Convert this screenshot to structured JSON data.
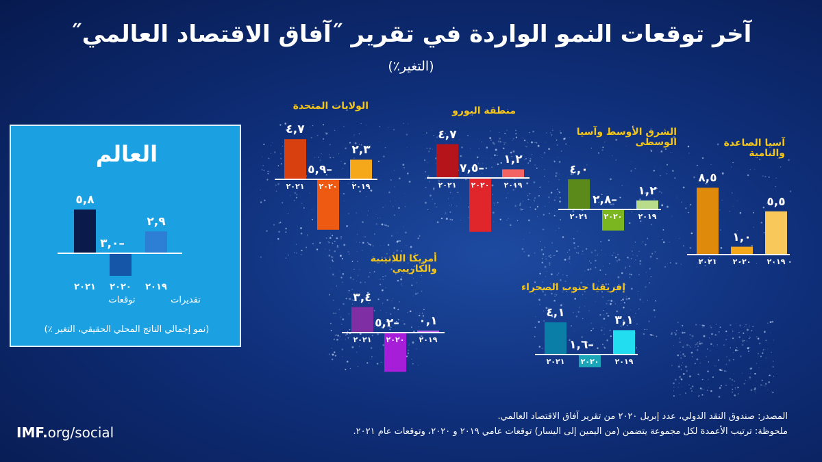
{
  "title": "آخر توقعات النمو الواردة في تقرير ˝آفاق الاقتصاد العالمي˝",
  "subtitle": "(التغير٪)",
  "world": {
    "title": "العالم",
    "note": "(نمو إجمالي الناتج المحلي الحقيقي، التغير ٪)",
    "legend_forecast": "توقعات",
    "legend_estimate": "تقديرات"
  },
  "colors": {
    "bg_dark": "#071a4f",
    "world_panel": "#1ba0e2",
    "region_title": "#f5c518"
  },
  "footer": {
    "source": "المصدر: صندوق النقد الدولي، عدد إبريل ٢٠٢٠ من تقرير آفاق الاقتصاد العالمي.",
    "note": "ملحوظة: ترتيب الأعمدة لكل مجموعة يتضمن (من اليمين إلى اليسار) توقعات عامي ٢٠١٩ و ٢٠٢٠، وتوقعات عام ٢٠٢١."
  },
  "brand": {
    "bold": "IMF.",
    "rest": "org/social"
  },
  "chart_data": [
    {
      "type": "bar",
      "id": "world",
      "title": "العالم",
      "categories": [
        "٢٠٢١",
        "٢٠٢٠",
        "٢٠١٩"
      ],
      "values": [
        5.8,
        -3.0,
        2.9
      ],
      "labels": [
        "٥,٨",
        "–٣,٠",
        "٢,٩"
      ],
      "colors": [
        "#0a1a4a",
        "#1556a8",
        "#2d7fd6"
      ]
    },
    {
      "type": "bar",
      "id": "us",
      "title": "الولايات المتحدة",
      "categories": [
        "٢٠٢١",
        "٢٠٢٠",
        "٢٠١٩"
      ],
      "values": [
        4.7,
        -5.9,
        2.3
      ],
      "labels": [
        "٤,٧",
        "–٥,٩",
        "٢,٣"
      ],
      "colors": [
        "#d9400f",
        "#ef5a12",
        "#f5a81a"
      ]
    },
    {
      "type": "bar",
      "id": "euro",
      "title": "منطقة اليورو",
      "categories": [
        "٢٠٢١",
        "٢٠٢٠",
        "٢٠١٩"
      ],
      "values": [
        4.7,
        -7.5,
        1.2
      ],
      "labels": [
        "٤,٧",
        "–٧,٥",
        "١,٢"
      ],
      "colors": [
        "#b4141a",
        "#e0262a",
        "#f26464"
      ]
    },
    {
      "type": "bar",
      "id": "mena",
      "title": "الشرق الأوسط وآسيا الوسطى",
      "categories": [
        "٢٠٢١",
        "٢٠٢٠",
        "٢٠١٩"
      ],
      "values": [
        4.0,
        -2.8,
        1.2
      ],
      "labels": [
        "٤,٠",
        "–٢,٨",
        "١,٢"
      ],
      "colors": [
        "#5c8a1a",
        "#7bb51f",
        "#b9dc8a"
      ]
    },
    {
      "type": "bar",
      "id": "asia",
      "title": "آسيا الصاعدة والنامية",
      "categories": [
        "٢٠٢١",
        "٢٠٢٠",
        "٢٠١٩"
      ],
      "values": [
        8.5,
        1.0,
        5.5
      ],
      "labels": [
        "٨,٥",
        "١,٠",
        "٥,٥"
      ],
      "colors": [
        "#e08a0c",
        "#f5a81a",
        "#f8c95a"
      ]
    },
    {
      "type": "bar",
      "id": "latam",
      "title": "أمريكا اللاتينية والكاريبي",
      "categories": [
        "٢٠٢١",
        "٢٠٢٠",
        "٢٠١٩"
      ],
      "values": [
        3.4,
        -5.2,
        0.1
      ],
      "labels": [
        "٣,٤",
        "–٥,٢",
        "٠,١"
      ],
      "colors": [
        "#7f2fa3",
        "#a71ed9",
        "#c36ae8"
      ]
    },
    {
      "type": "bar",
      "id": "ssa",
      "title": "إفريقيا جنوب الصحراء",
      "categories": [
        "٢٠٢١",
        "٢٠٢٠",
        "٢٠١٩"
      ],
      "values": [
        4.1,
        -1.6,
        3.1
      ],
      "labels": [
        "٤,١",
        "–١,٦",
        "٣,١"
      ],
      "colors": [
        "#0b7ea8",
        "#1aa6b8",
        "#22dcf0"
      ]
    }
  ]
}
